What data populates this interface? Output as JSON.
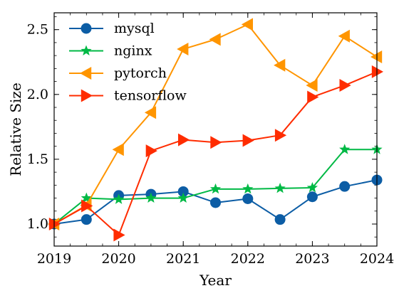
{
  "chart_data": {
    "type": "line",
    "title": "",
    "xlabel": "Year",
    "ylabel": "Relative Size",
    "x": [
      2019,
      2019.5,
      2020,
      2020.5,
      2021,
      2021.5,
      2022,
      2022.5,
      2023,
      2023.5,
      2024
    ],
    "xlim": [
      2019,
      2024
    ],
    "ylim": [
      0.83,
      2.63
    ],
    "xticks": [
      2019,
      2020,
      2021,
      2022,
      2023,
      2024
    ],
    "xtick_labels": [
      "2019",
      "2020",
      "2021",
      "2022",
      "2023",
      "2024"
    ],
    "yticks": [
      1.0,
      1.5,
      2.0,
      2.5
    ],
    "ytick_labels": [
      "1.0",
      "1.5",
      "2.0",
      "2.5"
    ],
    "legend_position": "top-left",
    "grid": false,
    "series": [
      {
        "name": "mysql",
        "color": "#0c5da5",
        "marker": "circle",
        "values": [
          1.0,
          1.035,
          1.22,
          1.23,
          1.25,
          1.165,
          1.195,
          1.035,
          1.21,
          1.29,
          1.34
        ]
      },
      {
        "name": "nginx",
        "color": "#00b945",
        "marker": "star",
        "values": [
          1.0,
          1.2,
          1.19,
          1.2,
          1.2,
          1.27,
          1.27,
          1.275,
          1.28,
          1.575,
          1.575
        ]
      },
      {
        "name": "pytorch",
        "color": "#ff9500",
        "marker": "triangle-left",
        "values": [
          1.0,
          1.145,
          1.575,
          1.86,
          2.35,
          2.425,
          2.54,
          2.225,
          2.07,
          2.45,
          2.29
        ]
      },
      {
        "name": "tensorflow",
        "color": "#ff2c00",
        "marker": "triangle-right",
        "values": [
          1.0,
          1.14,
          0.915,
          1.565,
          1.65,
          1.63,
          1.645,
          1.685,
          1.98,
          2.07,
          2.175
        ]
      }
    ]
  }
}
